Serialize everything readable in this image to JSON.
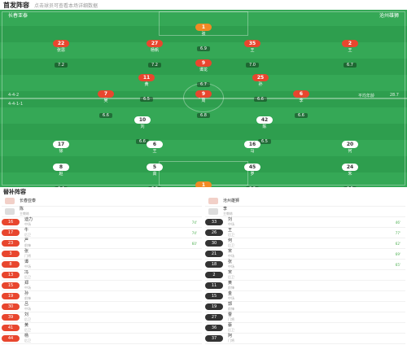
{
  "header": {
    "title": "首发阵容",
    "subtitle": "点击球员可查看本场详细数据"
  },
  "pitch": {
    "home_team": "长春亚泰",
    "away_team": "沧州雄狮",
    "home_formation": "4-4-2",
    "away_formation": "4-4-1-1",
    "info_right_1": "平均年龄",
    "info_right_2": "28.7",
    "center_text": "VS"
  },
  "players": [
    {
      "num": "1",
      "name": "张",
      "rating": "6.9",
      "color": "orange"
    },
    {
      "num": "22",
      "name": "张思",
      "rating": "7.2",
      "color": "red"
    },
    {
      "num": "27",
      "name": "杨帆",
      "rating": "7.2",
      "color": "red"
    },
    {
      "num": "35",
      "name": "王",
      "rating": "7.0",
      "color": "red"
    },
    {
      "num": "2",
      "name": "王",
      "rating": "6.7",
      "color": "red"
    },
    {
      "num": "9",
      "name": "谭龙",
      "rating": "6.7",
      "color": "red"
    },
    {
      "num": "11",
      "name": "黄",
      "rating": "6.5",
      "color": "red"
    },
    {
      "num": "25",
      "name": "孙",
      "rating": "6.6",
      "color": "red"
    },
    {
      "num": "7",
      "name": "吴",
      "rating": "6.6",
      "color": "red"
    },
    {
      "num": "9",
      "name": "周",
      "rating": "6.8",
      "color": "red"
    },
    {
      "num": "6",
      "name": "李",
      "rating": "6.6",
      "color": "red"
    },
    {
      "num": "10",
      "name": "刘",
      "rating": "6.6",
      "color": "white"
    },
    {
      "num": "42",
      "name": "陈",
      "rating": "6.5",
      "color": "white"
    },
    {
      "num": "17",
      "name": "徐",
      "rating": "6.6",
      "color": "white"
    },
    {
      "num": "6",
      "name": "王",
      "rating": "6.8",
      "color": "white"
    },
    {
      "num": "16",
      "name": "马",
      "rating": "6.4",
      "color": "white"
    },
    {
      "num": "20",
      "name": "何",
      "rating": "6.4",
      "color": "white"
    },
    {
      "num": "8",
      "name": "赵",
      "rating": "6.4",
      "color": "white"
    },
    {
      "num": "5",
      "name": "高",
      "rating": "6.6",
      "color": "white"
    },
    {
      "num": "45",
      "name": "罗",
      "rating": "6.6",
      "color": "white"
    },
    {
      "num": "24",
      "name": "朱",
      "rating": "6.5",
      "color": "white"
    },
    {
      "num": "1",
      "name": "金",
      "rating": "7.0",
      "color": "orange"
    }
  ],
  "subs": {
    "title": "替补阵容",
    "left": [
      {
        "num": "",
        "name": "长春亚泰",
        "sub": "",
        "info": "",
        "type": "coach"
      },
      {
        "num": "",
        "name": "陈",
        "sub": "主教练",
        "info": "",
        "type": "plain"
      },
      {
        "num": "16",
        "name": "迪力",
        "sub": "中场",
        "info": "74'",
        "type": "red"
      },
      {
        "num": "17",
        "name": "牛",
        "sub": "后卫",
        "info": "74'",
        "type": "red"
      },
      {
        "num": "23",
        "name": "严",
        "sub": "前锋",
        "info": "60'",
        "type": "red"
      },
      {
        "num": "3",
        "name": "张",
        "sub": "门将",
        "info": "",
        "type": "red"
      },
      {
        "num": "8",
        "name": "谭",
        "sub": "中场",
        "info": "",
        "type": "red"
      },
      {
        "num": "13",
        "name": "冯",
        "sub": "后卫",
        "info": "",
        "type": "red"
      },
      {
        "num": "15",
        "name": "郑",
        "sub": "中场",
        "info": "",
        "type": "red"
      },
      {
        "num": "19",
        "name": "孙",
        "sub": "前锋",
        "info": "",
        "type": "red"
      },
      {
        "num": "30",
        "name": "吕",
        "sub": "中场",
        "info": "",
        "type": "red"
      },
      {
        "num": "39",
        "name": "刘",
        "sub": "后卫",
        "info": "",
        "type": "red"
      },
      {
        "num": "41",
        "name": "黄",
        "sub": "后卫",
        "info": "",
        "type": "red"
      },
      {
        "num": "44",
        "name": "杨",
        "sub": "后卫",
        "info": "",
        "type": "red"
      }
    ],
    "right": [
      {
        "num": "",
        "name": "沧州雄狮",
        "sub": "",
        "info": "",
        "type": "coach"
      },
      {
        "num": "",
        "name": "李",
        "sub": "主教练",
        "info": "",
        "type": "plain"
      },
      {
        "num": "33",
        "name": "刘",
        "sub": "中场",
        "info": "46'",
        "type": "dark"
      },
      {
        "num": "26",
        "name": "王",
        "sub": "后卫",
        "info": "77'",
        "type": "dark"
      },
      {
        "num": "30",
        "name": "何",
        "sub": "后卫",
        "info": "62'",
        "type": "dark"
      },
      {
        "num": "21",
        "name": "宋",
        "sub": "中场",
        "info": "69'",
        "type": "dark"
      },
      {
        "num": "18",
        "name": "张",
        "sub": "中场",
        "info": "65'",
        "type": "dark"
      },
      {
        "num": "2",
        "name": "宋",
        "sub": "后卫",
        "info": "",
        "type": "dark"
      },
      {
        "num": "11",
        "name": "黄",
        "sub": "前锋",
        "info": "",
        "type": "dark"
      },
      {
        "num": "15",
        "name": "金",
        "sub": "中场",
        "info": "",
        "type": "dark"
      },
      {
        "num": "19",
        "name": "郭",
        "sub": "前锋",
        "info": "",
        "type": "dark"
      },
      {
        "num": "27",
        "name": "曹",
        "sub": "门将",
        "info": "",
        "type": "dark"
      },
      {
        "num": "36",
        "name": "蔡",
        "sub": "后卫",
        "info": "",
        "type": "dark"
      },
      {
        "num": "37",
        "name": "阿",
        "sub": "门将",
        "info": "",
        "type": "dark"
      }
    ]
  }
}
